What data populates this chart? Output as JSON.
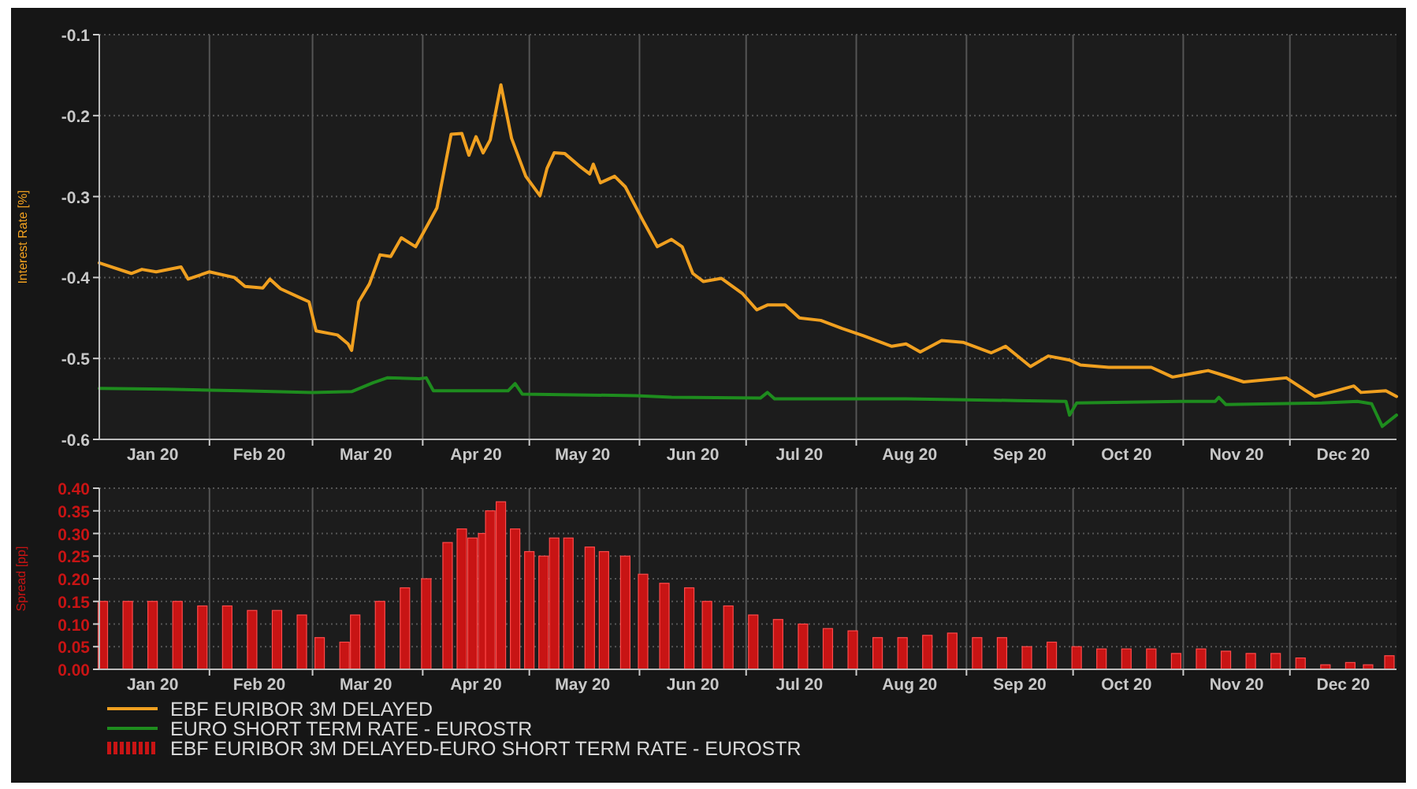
{
  "chart_data": [
    {
      "type": "line",
      "ylabel": "Interest Rate [%]",
      "xlim": [
        "2020-01-01",
        "2020-12-31"
      ],
      "ylim": [
        -0.6,
        -0.1
      ],
      "yticks": [
        -0.6,
        -0.5,
        -0.4,
        -0.3,
        -0.2,
        -0.1
      ],
      "xticks": [
        {
          "value": "2020-01-16",
          "label": "Jan 20"
        },
        {
          "value": "2020-02-01",
          "label": null
        },
        {
          "value": "2020-02-15",
          "label": "Feb 20"
        },
        {
          "value": "2020-03-01",
          "label": null
        },
        {
          "value": "2020-03-16",
          "label": "Mar 20"
        },
        {
          "value": "2020-04-01",
          "label": null
        },
        {
          "value": "2020-04-16",
          "label": "Apr 20"
        },
        {
          "value": "2020-05-01",
          "label": null
        },
        {
          "value": "2020-05-16",
          "label": "May 20"
        },
        {
          "value": "2020-06-01",
          "label": null
        },
        {
          "value": "2020-06-16",
          "label": "Jun 20"
        },
        {
          "value": "2020-07-01",
          "label": null
        },
        {
          "value": "2020-07-16",
          "label": "Jul 20"
        },
        {
          "value": "2020-08-01",
          "label": null
        },
        {
          "value": "2020-08-16",
          "label": "Aug 20"
        },
        {
          "value": "2020-09-01",
          "label": null
        },
        {
          "value": "2020-09-16",
          "label": "Sep 20"
        },
        {
          "value": "2020-10-01",
          "label": null
        },
        {
          "value": "2020-10-16",
          "label": "Oct 20"
        },
        {
          "value": "2020-11-01",
          "label": null
        },
        {
          "value": "2020-11-16",
          "label": "Nov 20"
        },
        {
          "value": "2020-12-01",
          "label": null
        },
        {
          "value": "2020-12-16",
          "label": "Dec 20"
        }
      ],
      "grid": true,
      "legend": "bottom",
      "series": [
        {
          "name": "EBF EURIBOR 3M DELAYED",
          "color": "#f0a020",
          "x": [
            "2020-01-01",
            "2020-01-10",
            "2020-01-13",
            "2020-01-17",
            "2020-01-24",
            "2020-01-26",
            "2020-02-01",
            "2020-02-08",
            "2020-02-11",
            "2020-02-16",
            "2020-02-18",
            "2020-02-21",
            "2020-02-26",
            "2020-02-29",
            "2020-03-02",
            "2020-03-08",
            "2020-03-11",
            "2020-03-12",
            "2020-03-14",
            "2020-03-17",
            "2020-03-20",
            "2020-03-23",
            "2020-03-26",
            "2020-03-30",
            "2020-04-02",
            "2020-04-05",
            "2020-04-09",
            "2020-04-12",
            "2020-04-14",
            "2020-04-16",
            "2020-04-18",
            "2020-04-20",
            "2020-04-23",
            "2020-04-26",
            "2020-04-30",
            "2020-05-04",
            "2020-05-06",
            "2020-05-08",
            "2020-05-11",
            "2020-05-15",
            "2020-05-18",
            "2020-05-19",
            "2020-05-21",
            "2020-05-25",
            "2020-05-28",
            "2020-06-02",
            "2020-06-06",
            "2020-06-10",
            "2020-06-13",
            "2020-06-16",
            "2020-06-19",
            "2020-06-24",
            "2020-06-30",
            "2020-07-04",
            "2020-07-07",
            "2020-07-12",
            "2020-07-16",
            "2020-07-22",
            "2020-07-28",
            "2020-08-03",
            "2020-08-11",
            "2020-08-15",
            "2020-08-19",
            "2020-08-25",
            "2020-08-31",
            "2020-09-08",
            "2020-09-12",
            "2020-09-19",
            "2020-09-24",
            "2020-09-30",
            "2020-10-03",
            "2020-10-11",
            "2020-10-23",
            "2020-10-29",
            "2020-11-08",
            "2020-11-11",
            "2020-11-18",
            "2020-11-30",
            "2020-12-08",
            "2020-12-14",
            "2020-12-19",
            "2020-12-21",
            "2020-12-28",
            "2020-12-31"
          ],
          "values": [
            -0.382,
            -0.395,
            -0.39,
            -0.393,
            -0.387,
            -0.402,
            -0.393,
            -0.4,
            -0.411,
            -0.413,
            -0.402,
            -0.414,
            -0.424,
            -0.43,
            -0.466,
            -0.471,
            -0.482,
            -0.49,
            -0.43,
            -0.408,
            -0.372,
            -0.374,
            -0.351,
            -0.362,
            -0.338,
            -0.314,
            -0.223,
            -0.222,
            -0.249,
            -0.226,
            -0.246,
            -0.23,
            -0.162,
            -0.228,
            -0.275,
            -0.299,
            -0.265,
            -0.246,
            -0.247,
            -0.262,
            -0.272,
            -0.26,
            -0.283,
            -0.275,
            -0.288,
            -0.33,
            -0.362,
            -0.353,
            -0.362,
            -0.395,
            -0.405,
            -0.401,
            -0.42,
            -0.44,
            -0.434,
            -0.434,
            -0.45,
            -0.453,
            -0.463,
            -0.472,
            -0.485,
            -0.482,
            -0.492,
            -0.478,
            -0.48,
            -0.493,
            -0.485,
            -0.51,
            -0.497,
            -0.502,
            -0.508,
            -0.511,
            -0.511,
            -0.523,
            -0.515,
            -0.519,
            -0.529,
            -0.524,
            -0.547,
            -0.54,
            -0.534,
            -0.542,
            -0.54,
            -0.547
          ]
        },
        {
          "name": "EURO SHORT TERM RATE - EUROSTR",
          "color": "#1e8c1e",
          "x": [
            "2020-01-01",
            "2020-01-20",
            "2020-02-10",
            "2020-03-01",
            "2020-03-12",
            "2020-03-18",
            "2020-03-22",
            "2020-03-31",
            "2020-04-02",
            "2020-04-04",
            "2020-04-25",
            "2020-04-27",
            "2020-04-29",
            "2020-05-31",
            "2020-06-10",
            "2020-07-05",
            "2020-07-07",
            "2020-07-09",
            "2020-08-15",
            "2020-09-15",
            "2020-09-29",
            "2020-09-30",
            "2020-10-02",
            "2020-10-31",
            "2020-11-10",
            "2020-11-11",
            "2020-11-13",
            "2020-12-10",
            "2020-12-20",
            "2020-12-24",
            "2020-12-27",
            "2020-12-31"
          ],
          "values": [
            -0.537,
            -0.538,
            -0.54,
            -0.542,
            -0.541,
            -0.53,
            -0.524,
            -0.525,
            -0.524,
            -0.54,
            -0.54,
            -0.531,
            -0.544,
            -0.546,
            -0.548,
            -0.549,
            -0.542,
            -0.55,
            -0.55,
            -0.552,
            -0.553,
            -0.57,
            -0.555,
            -0.553,
            -0.553,
            -0.548,
            -0.557,
            -0.555,
            -0.553,
            -0.556,
            -0.584,
            -0.57
          ]
        }
      ]
    },
    {
      "type": "bar",
      "ylabel": "Spread [pp]",
      "xlim": [
        "2020-01-01",
        "2020-12-31"
      ],
      "ylim": [
        0,
        0.4
      ],
      "yticks": [
        {
          "value": 0,
          "label": "0.00"
        },
        {
          "value": 0.05,
          "label": "0.05"
        },
        {
          "value": 0.1,
          "label": "0.10"
        },
        {
          "value": 0.15,
          "label": "0.15"
        },
        {
          "value": 0.2,
          "label": "0.20"
        },
        {
          "value": 0.25,
          "label": "0.25"
        },
        {
          "value": 0.3,
          "label": "0.30"
        },
        {
          "value": 0.35,
          "label": "0.35"
        },
        {
          "value": 0.4,
          "label": "0.40"
        }
      ],
      "xticks": [
        {
          "value": "2020-01-16",
          "label": "Jan 20"
        },
        {
          "value": "2020-02-01",
          "label": null
        },
        {
          "value": "2020-02-15",
          "label": "Feb 20"
        },
        {
          "value": "2020-03-01",
          "label": null
        },
        {
          "value": "2020-03-16",
          "label": "Mar 20"
        },
        {
          "value": "2020-04-01",
          "label": null
        },
        {
          "value": "2020-04-16",
          "label": "Apr 20"
        },
        {
          "value": "2020-05-01",
          "label": null
        },
        {
          "value": "2020-05-16",
          "label": "May 20"
        },
        {
          "value": "2020-06-01",
          "label": null
        },
        {
          "value": "2020-06-16",
          "label": "Jun 20"
        },
        {
          "value": "2020-07-01",
          "label": null
        },
        {
          "value": "2020-07-16",
          "label": "Jul 20"
        },
        {
          "value": "2020-08-01",
          "label": null
        },
        {
          "value": "2020-08-16",
          "label": "Aug 20"
        },
        {
          "value": "2020-09-01",
          "label": null
        },
        {
          "value": "2020-09-16",
          "label": "Sep 20"
        },
        {
          "value": "2020-10-01",
          "label": null
        },
        {
          "value": "2020-10-16",
          "label": "Oct 20"
        },
        {
          "value": "2020-11-01",
          "label": null
        },
        {
          "value": "2020-11-16",
          "label": "Nov 20"
        },
        {
          "value": "2020-12-01",
          "label": null
        },
        {
          "value": "2020-12-16",
          "label": "Dec 20"
        }
      ],
      "grid": true,
      "legend": "bottom",
      "x": [
        "2020-01-02",
        "2020-01-09",
        "2020-01-16",
        "2020-01-23",
        "2020-01-30",
        "2020-02-06",
        "2020-02-13",
        "2020-02-20",
        "2020-02-27",
        "2020-03-03",
        "2020-03-10",
        "2020-03-13",
        "2020-03-20",
        "2020-03-27",
        "2020-04-02",
        "2020-04-08",
        "2020-04-12",
        "2020-04-15",
        "2020-04-18",
        "2020-04-20",
        "2020-04-23",
        "2020-04-27",
        "2020-05-01",
        "2020-05-05",
        "2020-05-08",
        "2020-05-12",
        "2020-05-18",
        "2020-05-22",
        "2020-05-28",
        "2020-06-02",
        "2020-06-08",
        "2020-06-15",
        "2020-06-20",
        "2020-06-26",
        "2020-07-03",
        "2020-07-10",
        "2020-07-17",
        "2020-07-24",
        "2020-07-31",
        "2020-08-07",
        "2020-08-14",
        "2020-08-21",
        "2020-08-28",
        "2020-09-04",
        "2020-09-11",
        "2020-09-18",
        "2020-09-25",
        "2020-10-02",
        "2020-10-09",
        "2020-10-16",
        "2020-10-23",
        "2020-10-30",
        "2020-11-06",
        "2020-11-13",
        "2020-11-20",
        "2020-11-27",
        "2020-12-04",
        "2020-12-11",
        "2020-12-18",
        "2020-12-23",
        "2020-12-29"
      ],
      "series": [
        {
          "name": "EBF EURIBOR 3M DELAYED-EURO SHORT TERM RATE - EUROSTR",
          "color": "#c81414",
          "values": [
            0.15,
            0.15,
            0.15,
            0.15,
            0.14,
            0.14,
            0.13,
            0.13,
            0.12,
            0.07,
            0.06,
            0.12,
            0.15,
            0.18,
            0.2,
            0.28,
            0.31,
            0.29,
            0.3,
            0.35,
            0.37,
            0.31,
            0.26,
            0.25,
            0.29,
            0.29,
            0.27,
            0.26,
            0.25,
            0.21,
            0.19,
            0.18,
            0.15,
            0.14,
            0.12,
            0.11,
            0.1,
            0.09,
            0.085,
            0.07,
            0.07,
            0.075,
            0.08,
            0.07,
            0.07,
            0.05,
            0.06,
            0.05,
            0.045,
            0.045,
            0.045,
            0.035,
            0.045,
            0.04,
            0.035,
            0.035,
            0.025,
            0.01,
            0.015,
            0.01,
            0.03
          ]
        }
      ]
    }
  ]
}
